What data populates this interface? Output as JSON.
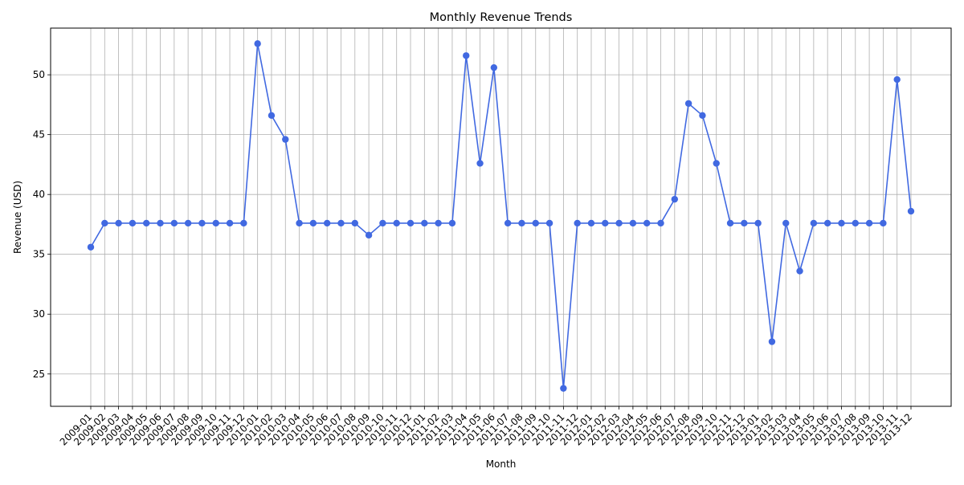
{
  "chart_data": {
    "type": "line",
    "title": "Monthly Revenue Trends",
    "xlabel": "Month",
    "ylabel": "Revenue (USD)",
    "ylim": [
      22.3,
      53.9
    ],
    "yticks": [
      25,
      30,
      35,
      40,
      45,
      50
    ],
    "grid": true,
    "categories": [
      "2009-01",
      "2009-02",
      "2009-03",
      "2009-04",
      "2009-05",
      "2009-06",
      "2009-07",
      "2009-08",
      "2009-09",
      "2009-10",
      "2009-11",
      "2009-12",
      "2010-01",
      "2010-02",
      "2010-03",
      "2010-04",
      "2010-05",
      "2010-06",
      "2010-07",
      "2010-08",
      "2010-09",
      "2010-10",
      "2010-11",
      "2010-12",
      "2011-01",
      "2011-02",
      "2011-03",
      "2011-04",
      "2011-05",
      "2011-06",
      "2011-07",
      "2011-08",
      "2011-09",
      "2011-10",
      "2011-11",
      "2011-12",
      "2012-01",
      "2012-02",
      "2012-03",
      "2012-04",
      "2012-05",
      "2012-06",
      "2012-07",
      "2012-08",
      "2012-09",
      "2012-10",
      "2012-11",
      "2012-12",
      "2013-01",
      "2013-02",
      "2013-03",
      "2013-04",
      "2013-05",
      "2013-06",
      "2013-07",
      "2013-08",
      "2013-09",
      "2013-10",
      "2013-11",
      "2013-12"
    ],
    "series": [
      {
        "color": "#4169e1",
        "values": [
          35.6,
          37.6,
          37.6,
          37.6,
          37.6,
          37.6,
          37.6,
          37.6,
          37.6,
          37.6,
          37.6,
          37.6,
          52.6,
          46.6,
          44.6,
          37.6,
          37.6,
          37.6,
          37.6,
          37.6,
          36.6,
          37.6,
          37.6,
          37.6,
          37.6,
          37.6,
          37.6,
          51.6,
          42.6,
          50.6,
          37.6,
          37.6,
          37.6,
          37.6,
          23.8,
          37.6,
          37.6,
          37.6,
          37.6,
          37.6,
          37.6,
          37.6,
          39.6,
          47.6,
          46.6,
          42.6,
          37.6,
          37.6,
          37.6,
          27.7,
          37.6,
          33.6,
          37.6,
          37.6,
          37.6,
          37.6,
          37.6,
          37.6,
          49.6,
          38.6
        ]
      }
    ]
  }
}
